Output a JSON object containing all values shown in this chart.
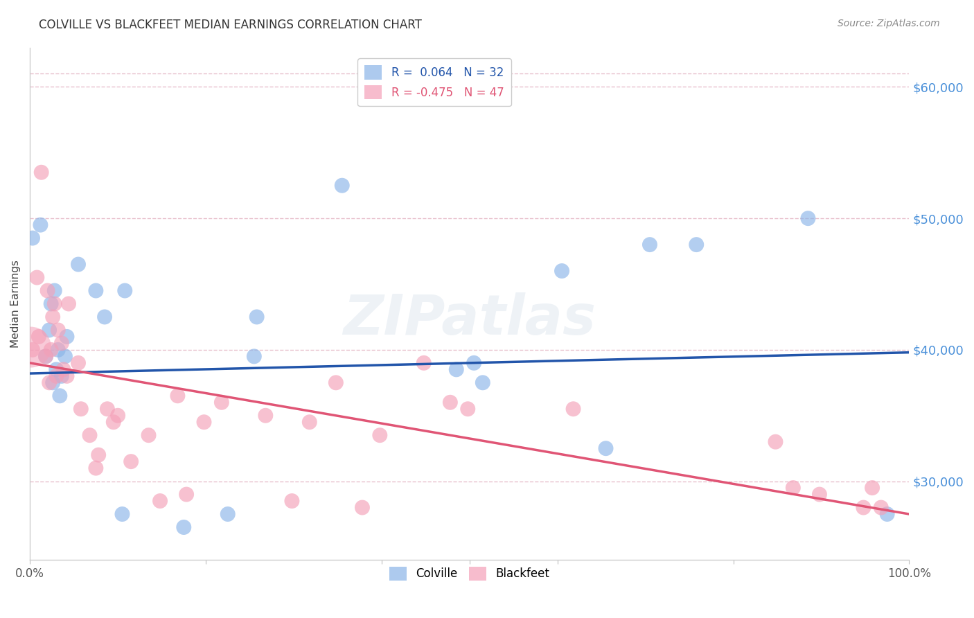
{
  "title": "COLVILLE VS BLACKFEET MEDIAN EARNINGS CORRELATION CHART",
  "source": "Source: ZipAtlas.com",
  "ylabel": "Median Earnings",
  "xlim": [
    0,
    1
  ],
  "ylim": [
    24000,
    63000
  ],
  "ytick_values": [
    30000,
    40000,
    50000,
    60000
  ],
  "ytick_labels": [
    "$30,000",
    "$40,000",
    "$50,000",
    "$60,000"
  ],
  "colville_color": "#8ab4e8",
  "blackfeet_color": "#f4a0b8",
  "colville_line_color": "#2255aa",
  "blackfeet_line_color": "#e05575",
  "watermark": "ZIPatlas",
  "background_color": "#ffffff",
  "grid_color": "#e8c0cc",
  "colville_x": [
    0.003,
    0.012,
    0.018,
    0.022,
    0.024,
    0.026,
    0.028,
    0.03,
    0.032,
    0.034,
    0.036,
    0.04,
    0.042,
    0.055,
    0.075,
    0.085,
    0.105,
    0.108,
    0.175,
    0.225,
    0.255,
    0.258,
    0.355,
    0.485,
    0.505,
    0.515,
    0.605,
    0.655,
    0.705,
    0.758,
    0.885,
    0.975
  ],
  "colville_y": [
    48500,
    49500,
    39500,
    41500,
    43500,
    37500,
    44500,
    38500,
    40000,
    36500,
    38000,
    39500,
    41000,
    46500,
    44500,
    42500,
    27500,
    44500,
    26500,
    27500,
    39500,
    42500,
    52500,
    38500,
    39000,
    37500,
    46000,
    32500,
    48000,
    48000,
    50000,
    27500
  ],
  "blackfeet_x": [
    0.003,
    0.008,
    0.01,
    0.013,
    0.018,
    0.02,
    0.022,
    0.024,
    0.026,
    0.028,
    0.03,
    0.032,
    0.036,
    0.038,
    0.042,
    0.044,
    0.055,
    0.058,
    0.068,
    0.075,
    0.078,
    0.088,
    0.095,
    0.1,
    0.115,
    0.135,
    0.148,
    0.168,
    0.178,
    0.198,
    0.218,
    0.268,
    0.298,
    0.318,
    0.348,
    0.378,
    0.398,
    0.448,
    0.478,
    0.498,
    0.618,
    0.848,
    0.868,
    0.898,
    0.948,
    0.958,
    0.968
  ],
  "blackfeet_y": [
    40000,
    45500,
    41000,
    53500,
    39500,
    44500,
    37500,
    40000,
    42500,
    43500,
    38000,
    41500,
    40500,
    38500,
    38000,
    43500,
    39000,
    35500,
    33500,
    31000,
    32000,
    35500,
    34500,
    35000,
    31500,
    33500,
    28500,
    36500,
    29000,
    34500,
    36000,
    35000,
    28500,
    34500,
    37500,
    28000,
    33500,
    39000,
    36000,
    35500,
    35500,
    33000,
    29500,
    29000,
    28000,
    29500,
    28000
  ]
}
